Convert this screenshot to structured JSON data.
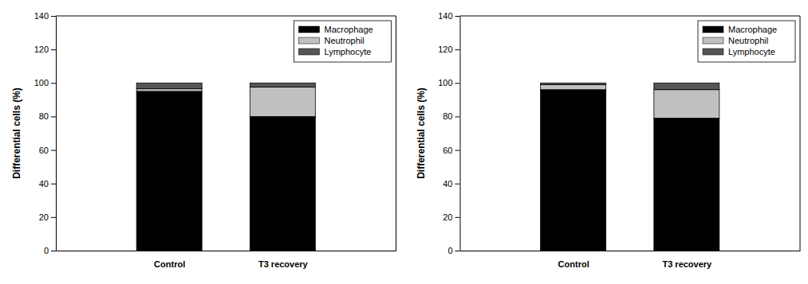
{
  "chart_data": [
    {
      "type": "bar",
      "stacked": true,
      "ylabel": "Differential cells (%)",
      "categories": [
        "Control",
        "T3 recovery"
      ],
      "series": [
        {
          "name": "Macrophage",
          "color": "#000000",
          "values": [
            95,
            80
          ]
        },
        {
          "name": "Neutrophil",
          "color": "#c0c0c0",
          "values": [
            1.5,
            17.5
          ]
        },
        {
          "name": "Lymphocyte",
          "color": "#555555",
          "values": [
            3.5,
            2.5
          ]
        }
      ],
      "ylim": [
        0,
        140
      ],
      "yticks": [
        0,
        20,
        40,
        60,
        80,
        100,
        120,
        140
      ],
      "legend": "upper right",
      "grid": false
    },
    {
      "type": "bar",
      "stacked": true,
      "ylabel": "Differential cells (%)",
      "categories": [
        "Control",
        "T3 recovery"
      ],
      "series": [
        {
          "name": "Macrophage",
          "color": "#000000",
          "values": [
            96,
            79
          ]
        },
        {
          "name": "Neutrophil",
          "color": "#c0c0c0",
          "values": [
            3,
            17
          ]
        },
        {
          "name": "Lymphocyte",
          "color": "#555555",
          "values": [
            1,
            4
          ]
        }
      ],
      "ylim": [
        0,
        140
      ],
      "yticks": [
        0,
        20,
        40,
        60,
        80,
        100,
        120,
        140
      ],
      "legend": "upper right",
      "grid": false
    }
  ]
}
